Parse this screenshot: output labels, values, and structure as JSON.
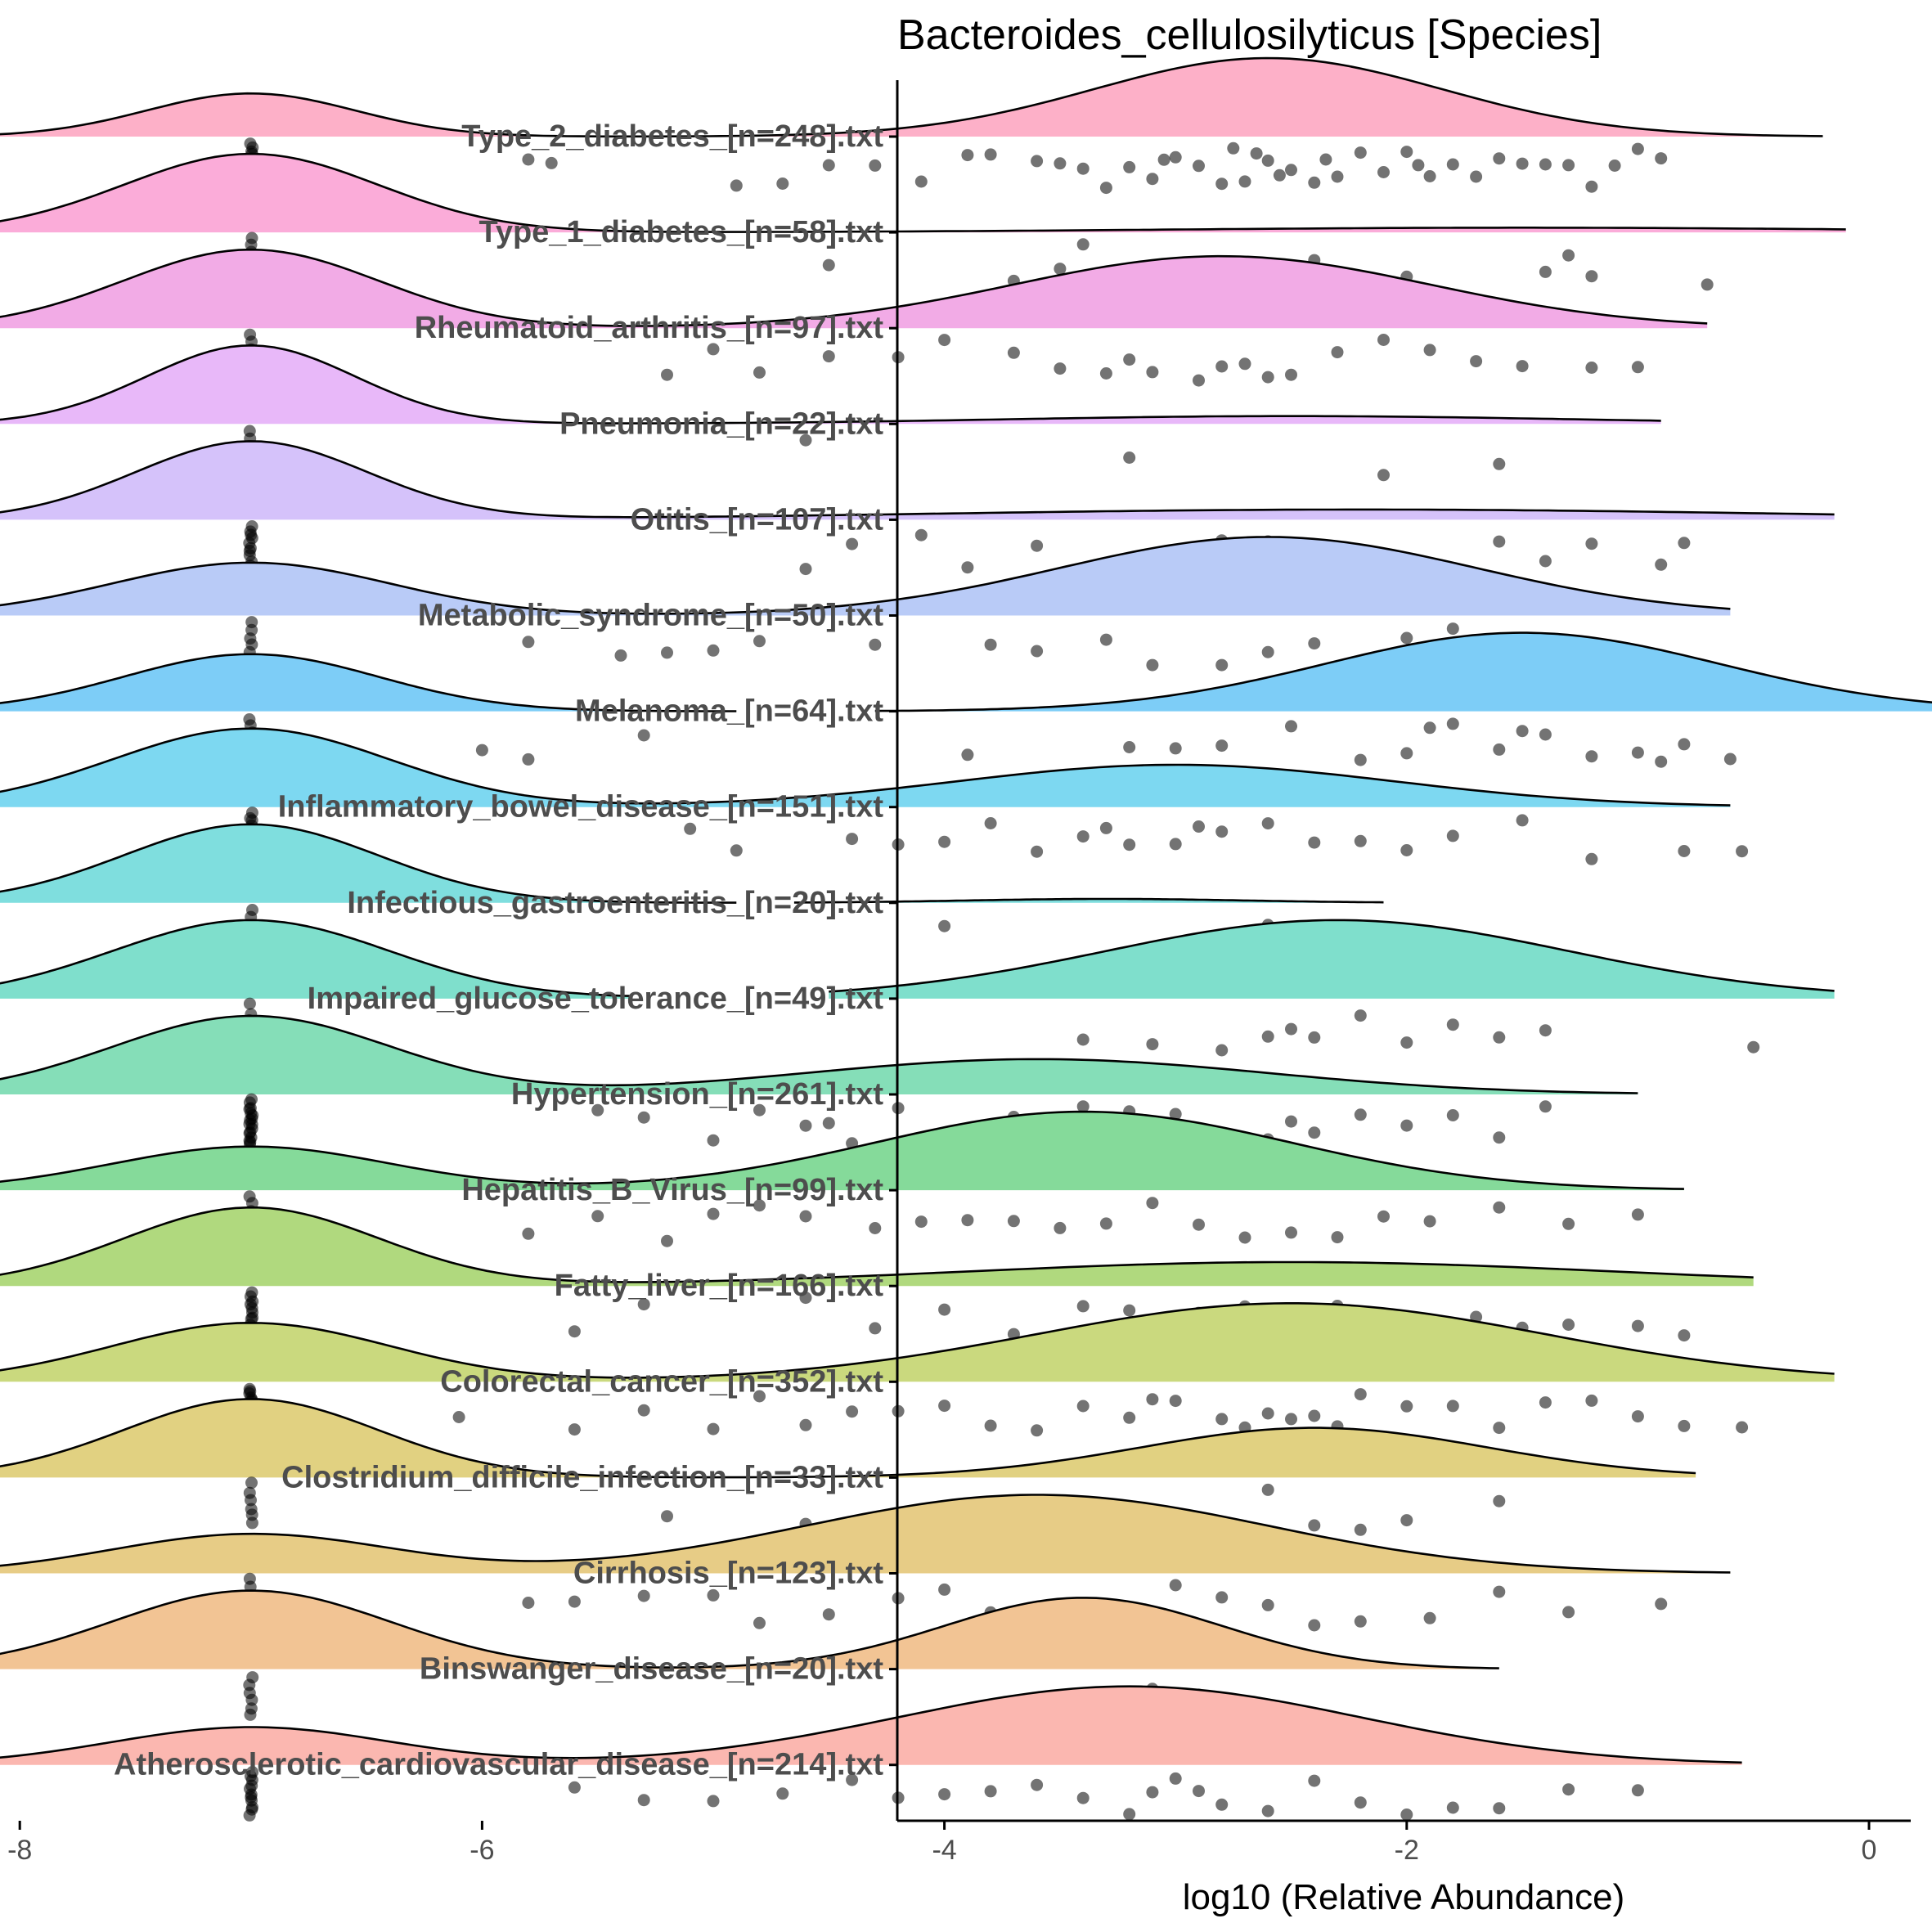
{
  "chart_data": {
    "type": "raincloud",
    "title": "Bacteroides_cellulosilyticus [Species]",
    "xlabel": "log10 (Relative Abundance)",
    "ylabel": "",
    "xlim": [
      -8.4,
      0.4
    ],
    "xticks": [
      -8,
      -6,
      -4,
      -2,
      0
    ],
    "xtick_labels": [
      "-8",
      "-6",
      "-4",
      "-2",
      "0"
    ],
    "legend": "none",
    "grid": false,
    "zero_value": -7,
    "categories": [
      {
        "label": "Type_2_diabetes_[n=248].txt",
        "color": "#fdb0c8",
        "n": 248,
        "zero_fraction": 0.3,
        "range": [
          -8.4,
          -0.2
        ],
        "peaks": [
          [
            -7.0,
            0.45,
            0.55
          ],
          [
            -2.6,
            0.75,
            1.0
          ]
        ],
        "points": [
          -5.8,
          -5.7,
          -4.9,
          -4.7,
          -4.5,
          -4.3,
          -4.1,
          -3.9,
          -3.8,
          -3.6,
          -3.5,
          -3.4,
          -3.3,
          -3.2,
          -3.1,
          -3.0,
          -2.9,
          -2.8,
          -2.7,
          -2.6,
          -2.5,
          -2.4,
          -2.3,
          -2.2,
          -2.1,
          -2.0,
          -1.9,
          -1.8,
          -1.7,
          -1.6,
          -1.5,
          -1.4,
          -1.3,
          -1.2,
          -1.1,
          -1.0,
          -0.9,
          -2.65,
          -2.55,
          -2.75,
          -3.05,
          -2.35,
          -1.95
        ]
      },
      {
        "label": "Type_1_diabetes_[n=58].txt",
        "color": "#fbacd9",
        "n": 58,
        "zero_fraction": 0.8,
        "range": [
          -8.4,
          -0.1
        ],
        "peaks": [
          [
            -7.0,
            0.55,
            1.0
          ],
          [
            -1.5,
            1.5,
            0.06
          ]
        ],
        "points": [
          -4.5,
          -3.7,
          -3.5,
          -3.4,
          -3.2,
          -2.9,
          -2.4,
          -2.0,
          -1.4,
          -1.3,
          -1.2,
          -0.7
        ]
      },
      {
        "label": "Rheumatoid_arthritis_[n=97].txt",
        "color": "#f2abe6",
        "n": 97,
        "zero_fraction": 0.45,
        "range": [
          -8.4,
          -0.7
        ],
        "peaks": [
          [
            -7.0,
            0.55,
            0.6
          ],
          [
            -2.8,
            0.9,
            0.55
          ]
        ],
        "points": [
          -5.2,
          -5.0,
          -4.8,
          -4.5,
          -4.2,
          -4.0,
          -3.7,
          -3.5,
          -3.3,
          -3.1,
          -2.9,
          -2.7,
          -2.5,
          -2.3,
          -2.1,
          -1.9,
          -1.7,
          -1.5,
          -1.2,
          -1.0,
          -3.2,
          -2.8,
          -2.6
        ]
      },
      {
        "label": "Pneumonia_[n=22].txt",
        "color": "#e8b8f9",
        "n": 22,
        "zero_fraction": 0.82,
        "range": [
          -8.4,
          -0.9
        ],
        "peaks": [
          [
            -7.0,
            0.45,
            1.0
          ],
          [
            -2.5,
            1.2,
            0.1
          ]
        ],
        "points": [
          -4.6,
          -3.2,
          -2.1,
          -1.6
        ]
      },
      {
        "label": "Otitis_[n=107].txt",
        "color": "#d5c2fa",
        "n": 107,
        "zero_fraction": 0.6,
        "range": [
          -8.4,
          -0.15
        ],
        "peaks": [
          [
            -7.0,
            0.5,
            0.92
          ],
          [
            -2.2,
            1.8,
            0.12
          ]
        ],
        "points": [
          -4.6,
          -4.4,
          -4.1,
          -3.9,
          -3.6,
          -3.3,
          -2.8,
          -2.6,
          -2.4,
          -1.9,
          -1.6,
          -1.4,
          -1.2,
          -0.9,
          -0.8
        ]
      },
      {
        "label": "Metabolic_syndrome_[n=50].txt",
        "color": "#b9cbf7",
        "n": 50,
        "zero_fraction": 0.35,
        "range": [
          -8.4,
          -0.6
        ],
        "peaks": [
          [
            -7.0,
            0.6,
            0.35
          ],
          [
            -2.6,
            0.9,
            0.52
          ]
        ],
        "points": [
          -5.8,
          -5.4,
          -5.2,
          -5.0,
          -4.8,
          -4.3,
          -3.8,
          -3.6,
          -3.3,
          -3.1,
          -2.8,
          -2.6,
          -2.4,
          -2.2,
          -2.0,
          -1.8,
          -1.6,
          -1.4,
          -1.2
        ]
      },
      {
        "label": "Melanoma_[n=64].txt",
        "color": "#7dcdf7",
        "n": 64,
        "zero_fraction": 0.35,
        "range": [
          -8.4,
          0.4
        ],
        "gap": [
          -4.9,
          -4.3
        ],
        "peaks": [
          [
            -7.0,
            0.55,
            0.4
          ],
          [
            -1.5,
            0.85,
            0.55
          ]
        ],
        "points": [
          -6.0,
          -5.8,
          -5.3,
          -3.9,
          -3.2,
          -3.0,
          -2.8,
          -2.5,
          -2.2,
          -2.0,
          -1.8,
          -1.6,
          -1.4,
          -1.2,
          -1.0,
          -0.9,
          -0.8,
          -0.6,
          -1.5,
          -1.9
        ]
      },
      {
        "label": "Inflammatory_bowel_disease_[n=151].txt",
        "color": "#7dd8f1",
        "n": 151,
        "zero_fraction": 0.5,
        "range": [
          -8.4,
          -0.6
        ],
        "peaks": [
          [
            -7.0,
            0.6,
            0.65
          ],
          [
            -3.0,
            0.95,
            0.35
          ]
        ],
        "points": [
          -5.1,
          -4.9,
          -4.4,
          -4.2,
          -4.0,
          -3.8,
          -3.6,
          -3.4,
          -3.2,
          -3.0,
          -2.8,
          -2.6,
          -2.4,
          -2.2,
          -2.0,
          -1.8,
          -1.5,
          -1.2,
          -0.8,
          -0.55,
          -3.3,
          -2.9
        ]
      },
      {
        "label": "Infectious_gastroenteritis_[n=20].txt",
        "color": "#7fdede",
        "n": 20,
        "zero_fraction": 0.85,
        "range": [
          -8.4,
          -2.1
        ],
        "gap": [
          -4.9,
          -4.65
        ],
        "peaks": [
          [
            -7.0,
            0.55,
            1.0
          ],
          [
            -3.3,
            0.6,
            0.05
          ]
        ],
        "points": [
          -4.0,
          -2.6
        ]
      },
      {
        "label": "Impaired_glucose_tolerance_[n=49].txt",
        "color": "#7fdfcc",
        "n": 49,
        "zero_fraction": 0.5,
        "range": [
          -8.4,
          -0.15
        ],
        "gap": [
          -5.35,
          -4.5
        ],
        "peaks": [
          [
            -7.0,
            0.6,
            0.42
          ],
          [
            -2.3,
            1.0,
            0.42
          ]
        ],
        "points": [
          -3.4,
          -3.1,
          -2.8,
          -2.6,
          -2.4,
          -2.2,
          -2.0,
          -1.8,
          -1.6,
          -1.4,
          -0.5,
          -2.5
        ]
      },
      {
        "label": "Hypertension_[n=261].txt",
        "color": "#85deb8",
        "n": 261,
        "zero_fraction": 0.4,
        "range": [
          -8.4,
          -1.0
        ],
        "peaks": [
          [
            -7.0,
            0.6,
            0.6
          ],
          [
            -3.6,
            1.0,
            0.27
          ]
        ],
        "points": [
          -5.5,
          -5.3,
          -5.0,
          -4.8,
          -4.6,
          -4.4,
          -4.2,
          -4.0,
          -3.8,
          -3.6,
          -3.4,
          -3.2,
          -3.0,
          -2.8,
          -2.6,
          -2.4,
          -2.2,
          -2.0,
          -1.8,
          -1.6,
          -1.4,
          -3.7,
          -3.3,
          -2.5,
          -4.5
        ]
      },
      {
        "label": "Hepatitis_B_Virus_[n=99].txt",
        "color": "#85da9a",
        "n": 99,
        "zero_fraction": 0.3,
        "range": [
          -8.4,
          -0.8
        ],
        "peaks": [
          [
            -7.0,
            0.6,
            0.25
          ],
          [
            -3.4,
            0.9,
            0.45
          ]
        ],
        "points": [
          -5.8,
          -5.5,
          -5.2,
          -5.0,
          -4.8,
          -4.6,
          -4.3,
          -4.1,
          -3.9,
          -3.7,
          -3.5,
          -3.3,
          -3.1,
          -2.9,
          -2.7,
          -2.5,
          -2.3,
          -2.1,
          -1.9,
          -1.6,
          -1.3,
          -1.0
        ]
      },
      {
        "label": "Fatty_liver_[n=166].txt",
        "color": "#b0d97e",
        "n": 166,
        "zero_fraction": 0.45,
        "range": [
          -8.4,
          -0.5
        ],
        "peaks": [
          [
            -7.0,
            0.55,
            0.82
          ],
          [
            -2.5,
            1.4,
            0.25
          ]
        ],
        "points": [
          -5.6,
          -5.3,
          -4.6,
          -4.3,
          -4.0,
          -3.7,
          -3.4,
          -3.1,
          -2.9,
          -2.7,
          -2.5,
          -2.3,
          -2.1,
          -1.9,
          -1.7,
          -1.5,
          -1.3,
          -1.0,
          -0.8,
          -2.6,
          -3.2
        ]
      },
      {
        "label": "Colorectal_cancer_[n=352].txt",
        "color": "#cad97e",
        "n": 352,
        "zero_fraction": 0.3,
        "range": [
          -8.4,
          -0.15
        ],
        "peaks": [
          [
            -7.0,
            0.6,
            0.45
          ],
          [
            -2.5,
            1.1,
            0.6
          ]
        ],
        "points": [
          -6.1,
          -5.6,
          -5.3,
          -5.0,
          -4.8,
          -4.6,
          -4.4,
          -4.2,
          -4.0,
          -3.8,
          -3.6,
          -3.4,
          -3.2,
          -3.0,
          -2.8,
          -2.6,
          -2.4,
          -2.2,
          -2.0,
          -1.8,
          -1.6,
          -1.4,
          -1.2,
          -1.0,
          -0.8,
          -0.55,
          -2.5,
          -2.7,
          -3.1,
          -2.3
        ]
      },
      {
        "label": "Clostridium_difficile_infection_[n=33].txt",
        "color": "#e1d181",
        "n": 33,
        "zero_fraction": 0.55,
        "range": [
          -8.4,
          -0.75
        ],
        "peaks": [
          [
            -7.0,
            0.55,
            0.6
          ],
          [
            -2.4,
            0.75,
            0.38
          ]
        ],
        "points": [
          -5.2,
          -4.6,
          -3.2,
          -2.6,
          -2.4,
          -2.2,
          -2.0,
          -1.6
        ]
      },
      {
        "label": "Cirrhosis_[n=123].txt",
        "color": "#e7cc86",
        "n": 123,
        "zero_fraction": 0.3,
        "range": [
          -8.4,
          -0.6
        ],
        "peaks": [
          [
            -7.0,
            0.6,
            0.25
          ],
          [
            -3.6,
            1.0,
            0.5
          ]
        ],
        "points": [
          -5.8,
          -5.6,
          -5.3,
          -5.0,
          -4.8,
          -4.5,
          -4.2,
          -4.0,
          -3.8,
          -3.6,
          -3.4,
          -3.2,
          -3.0,
          -2.8,
          -2.6,
          -2.4,
          -2.2,
          -1.9,
          -1.6,
          -1.3,
          -0.9,
          -3.5
        ]
      },
      {
        "label": "Binswanger_disease_[n=20].txt",
        "color": "#f2c494",
        "n": 20,
        "zero_fraction": 0.5,
        "range": [
          -8.4,
          -1.6
        ],
        "peaks": [
          [
            -7.0,
            0.6,
            0.55
          ],
          [
            -3.4,
            0.6,
            0.5
          ]
        ],
        "points": [
          -3.9,
          -3.7,
          -3.6,
          -3.3,
          -3.1,
          -2.9
        ]
      },
      {
        "label": "Atherosclerotic_cardiovascular_disease_[n=214].txt",
        "color": "#fbb7b0",
        "n": 214,
        "zero_fraction": 0.3,
        "range": [
          -8.4,
          -0.55
        ],
        "peaks": [
          [
            -7.0,
            0.6,
            0.25
          ],
          [
            -3.2,
            1.0,
            0.52
          ]
        ],
        "points": [
          -5.6,
          -5.3,
          -5.0,
          -4.7,
          -4.4,
          -4.2,
          -4.0,
          -3.8,
          -3.6,
          -3.4,
          -3.2,
          -3.0,
          -2.8,
          -2.6,
          -2.4,
          -2.2,
          -2.0,
          -1.8,
          -1.6,
          -1.3,
          -1.0,
          -3.1,
          -2.9
        ]
      }
    ]
  }
}
